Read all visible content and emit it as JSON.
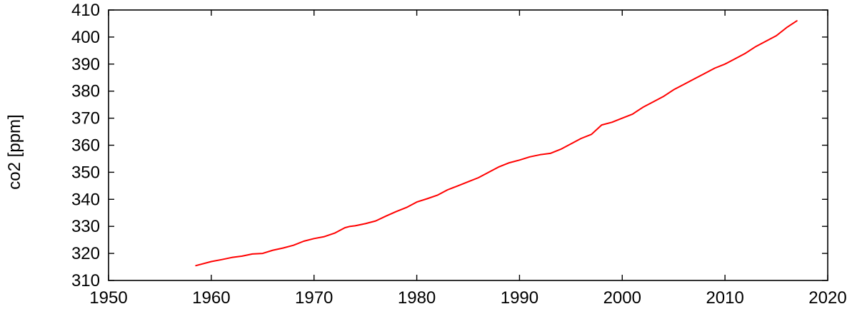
{
  "chart_data": {
    "type": "line",
    "title": "",
    "xlabel": "",
    "ylabel": "co2 [ppm]",
    "xlim": [
      1950,
      2020
    ],
    "ylim": [
      310,
      410
    ],
    "x_ticks": [
      "1950",
      "1960",
      "1970",
      "1980",
      "1990",
      "2000",
      "2010",
      "2020"
    ],
    "y_ticks": [
      "310",
      "320",
      "330",
      "340",
      "350",
      "360",
      "370",
      "380",
      "390",
      "400",
      "410"
    ],
    "grid": false,
    "legend": "none",
    "series": [
      {
        "color": "#ff0000",
        "x": [
          1958.5,
          1959,
          1960,
          1961,
          1962,
          1963,
          1964,
          1965,
          1966,
          1967,
          1968,
          1969,
          1970,
          1971,
          1972,
          1973,
          1973.5,
          1974,
          1975,
          1976,
          1977,
          1978,
          1979,
          1980,
          1981,
          1982,
          1983,
          1984,
          1985,
          1986,
          1987,
          1988,
          1989,
          1990,
          1991,
          1992,
          1993,
          1994,
          1995,
          1996,
          1997,
          1998,
          1999,
          2000,
          2001,
          2002,
          2003,
          2004,
          2005,
          2006,
          2007,
          2008,
          2009,
          2010,
          2011,
          2012,
          2013,
          2014,
          2015,
          2016,
          2017
        ],
        "values": [
          315.5,
          316,
          317,
          317.7,
          318.5,
          319,
          319.8,
          320,
          321.2,
          322,
          323,
          324.5,
          325.5,
          326.2,
          327.5,
          329.5,
          330,
          330.2,
          331,
          332,
          333.8,
          335.5,
          337,
          339,
          340.2,
          341.5,
          343.5,
          345,
          346.5,
          348,
          350,
          352,
          353.5,
          354.5,
          355.7,
          356.5,
          357,
          358.5,
          360.5,
          362.5,
          364,
          367.5,
          368.5,
          370,
          371.5,
          374,
          376,
          378,
          380.5,
          382.5,
          384.5,
          386.5,
          388.5,
          390,
          392,
          394,
          396.5,
          398.5,
          400.5,
          403.5,
          406
        ]
      }
    ]
  }
}
